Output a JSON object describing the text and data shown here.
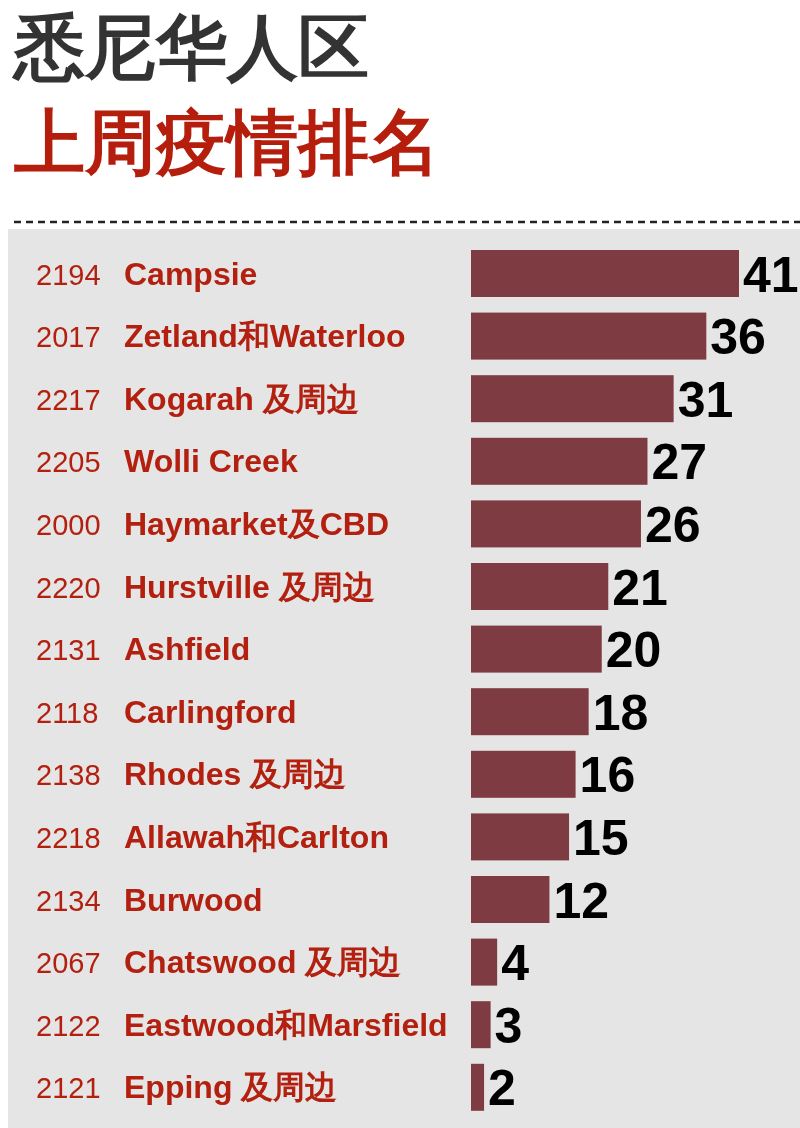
{
  "chart_data": {
    "type": "bar",
    "orientation": "horizontal",
    "title": "悉尼华人区",
    "subtitle": "上周疫情排名",
    "categories": [
      "2194 Campsie",
      "2017 Zetland和Waterloo",
      "2217 Kogarah 及周边",
      "2205 Wolli Creek",
      "2000 Haymarket及CBD",
      "2220 Hurstville 及周边",
      "2131 Ashfield",
      "2118 Carlingford",
      "2138 Rhodes 及周边",
      "2218 Allawah和Carlton",
      "2134 Burwood",
      "2067 Chatswood 及周边",
      "2122 Eastwood和Marsfield",
      "2121 Epping 及周边"
    ],
    "values": [
      41,
      36,
      31,
      27,
      26,
      21,
      20,
      18,
      16,
      15,
      12,
      4,
      3,
      2
    ],
    "color": "#7e3b41",
    "data_labels": true
  }
}
